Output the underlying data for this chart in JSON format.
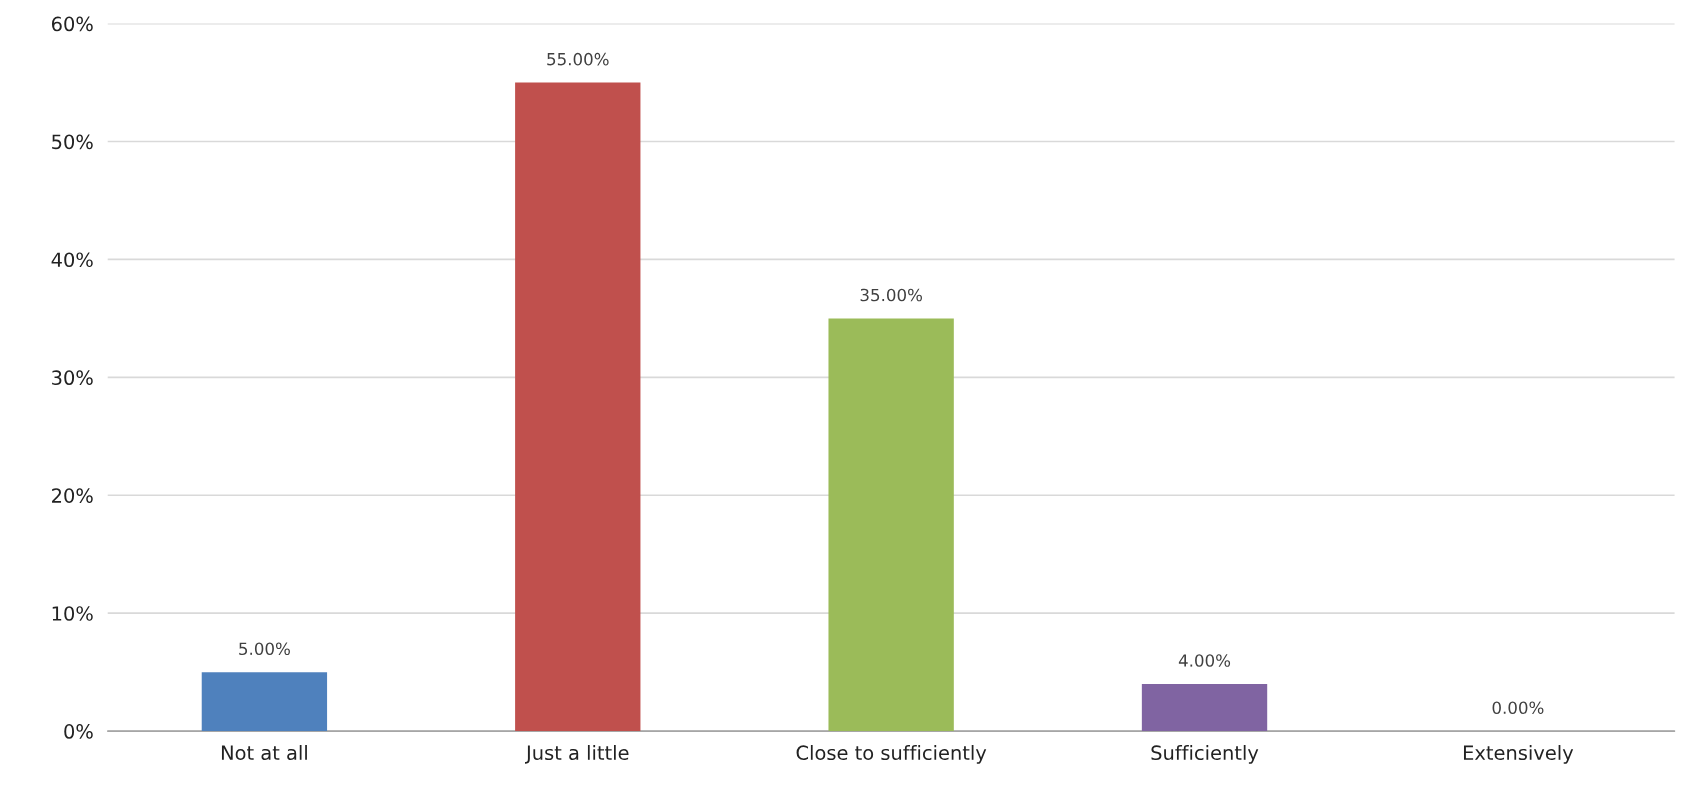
{
  "chart_data": {
    "type": "bar",
    "categories": [
      "Not at all",
      "Just a little",
      "Close to sufficiently",
      "Sufficiently",
      "Extensively"
    ],
    "values": [
      5,
      55,
      35,
      4,
      0
    ],
    "colors": [
      "#4f81bd",
      "#c0504d",
      "#9bbb59",
      "#8064a2",
      "#4bacc6"
    ],
    "value_labels": [
      "5.00%",
      "55.00%",
      "35.00%",
      "4.00%",
      "0.00%"
    ],
    "ylim": [
      0,
      60
    ],
    "yticks": [
      {
        "value": 0,
        "label": "0%"
      },
      {
        "value": 10,
        "label": "10%"
      },
      {
        "value": 20,
        "label": "20%"
      },
      {
        "value": 30,
        "label": "30%"
      },
      {
        "value": 40,
        "label": "40%"
      },
      {
        "value": 50,
        "label": "50%"
      },
      {
        "value": 60,
        "label": "60%"
      }
    ],
    "grid": "y",
    "legend": false
  }
}
